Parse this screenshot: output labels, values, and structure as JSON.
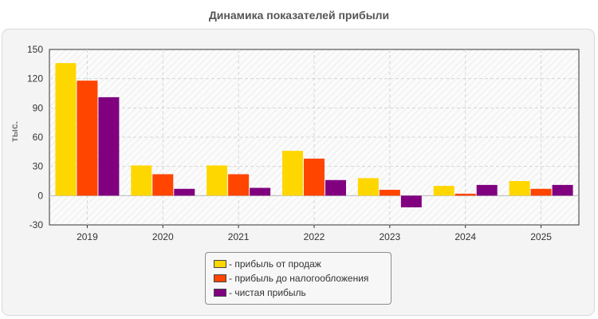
{
  "chart_data": {
    "type": "bar",
    "title": "Динамика показателей прибыли",
    "ylabel": "тыс.",
    "xlabel": "",
    "categories": [
      "2019",
      "2020",
      "2021",
      "2022",
      "2023",
      "2024",
      "2025"
    ],
    "ylim": [
      -30,
      150
    ],
    "yticks": [
      "150",
      "120",
      "90",
      "60",
      "30",
      "0",
      "-30"
    ],
    "grid": true,
    "legend_position": "bottom",
    "series": [
      {
        "name": "- прибыль от продаж",
        "color": "#ffd700",
        "values": [
          136,
          31,
          31,
          46,
          18,
          10,
          15
        ]
      },
      {
        "name": "- прибыль до налогообложения",
        "color": "#ff4500",
        "values": [
          118,
          22,
          22,
          38,
          6,
          2,
          7
        ]
      },
      {
        "name": "- чистая прибыль",
        "color": "#800080",
        "values": [
          101,
          7,
          8,
          16,
          -12,
          11,
          11
        ]
      }
    ]
  }
}
